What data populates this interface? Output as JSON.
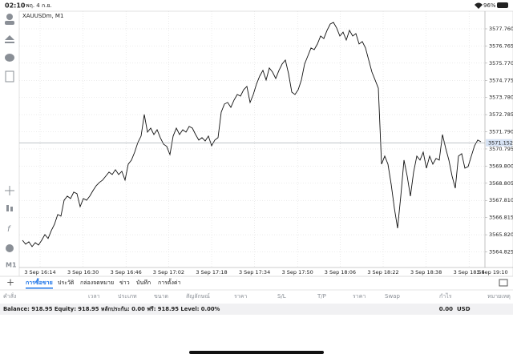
{
  "status_bar": {
    "time": "02:10",
    "date": "พฤ. 4 ก.ย.",
    "battery": "96%"
  },
  "chart_data": {
    "type": "line",
    "title": "XAUUSDm, M1",
    "color": "#111111",
    "grid": true,
    "values": [
      3565.5,
      3565.27,
      3565.41,
      3565.13,
      3565.36,
      3565.22,
      3565.5,
      3565.83,
      3565.6,
      3566.06,
      3566.43,
      3566.99,
      3566.9,
      3567.82,
      3568.06,
      3567.92,
      3568.29,
      3568.2,
      3567.45,
      3567.92,
      3567.82,
      3568.06,
      3568.38,
      3568.66,
      3568.85,
      3568.99,
      3569.22,
      3569.45,
      3569.31,
      3569.59,
      3569.31,
      3569.5,
      3568.99,
      3569.91,
      3570.15,
      3570.61,
      3571.17,
      3571.54,
      3572.79,
      3571.77,
      3572.0,
      3571.63,
      3571.91,
      3571.45,
      3571.07,
      3570.94,
      3570.47,
      3571.54,
      3572.0,
      3571.63,
      3571.91,
      3571.77,
      3572.1,
      3572.0,
      3571.63,
      3571.31,
      3571.45,
      3571.26,
      3571.54,
      3570.98,
      3571.31,
      3571.45,
      3572.93,
      3573.4,
      3573.49,
      3573.21,
      3573.63,
      3573.95,
      3573.86,
      3574.23,
      3574.42,
      3573.49,
      3573.95,
      3574.56,
      3575.02,
      3575.35,
      3574.79,
      3575.49,
      3575.25,
      3574.88,
      3575.35,
      3575.72,
      3575.95,
      3575.16,
      3574.09,
      3573.95,
      3574.23,
      3574.79,
      3575.72,
      3576.18,
      3576.65,
      3576.55,
      3576.88,
      3577.34,
      3577.2,
      3577.67,
      3578.04,
      3578.13,
      3577.81,
      3577.34,
      3577.57,
      3577.11,
      3577.67,
      3577.34,
      3577.48,
      3576.88,
      3577.02,
      3576.65,
      3575.95,
      3575.25,
      3574.79,
      3574.32,
      3569.91,
      3570.38,
      3569.91,
      3568.75,
      3567.36,
      3566.2,
      3568.06,
      3570.15,
      3569.22,
      3568.06,
      3569.45,
      3570.38,
      3570.15,
      3570.61,
      3569.68,
      3570.38,
      3569.91,
      3570.24,
      3570.15,
      3571.63,
      3570.84,
      3570.15,
      3569.22,
      3568.52,
      3570.38,
      3570.52,
      3569.68,
      3569.77,
      3570.38,
      3570.98,
      3571.31,
      3571.21
    ],
    "xlim": [
      0,
      144.25
    ],
    "xticks": [
      {
        "value": 5.5,
        "label": "3 Sep 16:14"
      },
      {
        "value": 18.9,
        "label": "3 Sep 16:30"
      },
      {
        "value": 32.3,
        "label": "3 Sep 16:46"
      },
      {
        "value": 45.6,
        "label": "3 Sep 17:02"
      },
      {
        "value": 59,
        "label": "3 Sep 17:18"
      },
      {
        "value": 72.4,
        "label": "3 Sep 17:34"
      },
      {
        "value": 85.8,
        "label": "3 Sep 17:50"
      },
      {
        "value": 99.1,
        "label": "3 Sep 18:06"
      },
      {
        "value": 112.5,
        "label": "3 Sep 18:22"
      },
      {
        "value": 125.9,
        "label": "3 Sep 18:38"
      },
      {
        "value": 139.3,
        "label": "3 Sep 18:54"
      },
      {
        "value": 146.5,
        "label": "3 Sep 19:10"
      }
    ],
    "ylim": [
      3563.92,
      3578.41
    ],
    "yticks": [
      {
        "value": 3577.76,
        "label": "3577.760"
      },
      {
        "value": 3576.765,
        "label": "3576.765"
      },
      {
        "value": 3575.77,
        "label": "3575.770"
      },
      {
        "value": 3574.775,
        "label": "3574.775"
      },
      {
        "value": 3573.78,
        "label": "3573.780"
      },
      {
        "value": 3572.785,
        "label": "3572.785"
      },
      {
        "value": 3571.79,
        "label": "3571.790"
      },
      {
        "value": 3570.795,
        "label": "3570.795"
      },
      {
        "value": 3569.8,
        "label": "3569.800"
      },
      {
        "value": 3568.805,
        "label": "3568.805"
      },
      {
        "value": 3567.81,
        "label": "3567.810"
      },
      {
        "value": 3566.815,
        "label": "3566.815"
      },
      {
        "value": 3565.82,
        "label": "3565.820"
      },
      {
        "value": 3564.825,
        "label": "3564.825"
      }
    ],
    "current_price": 3571.152,
    "timeframe": "M1"
  },
  "tabs": [
    "การซื้อขาย",
    "ประวัติ",
    "กล่องจดหมาย",
    "ข่าว",
    "บันทึก",
    "การตั้งค่า"
  ],
  "table_header": [
    "คำสั่ง",
    "เวลา",
    "ประเภท",
    "ขนาด",
    "สัญลักษณ์",
    "ราคา",
    "S/L",
    "T/P",
    "ราคา",
    "Swap",
    "กำไร",
    "หมายเหตุ"
  ],
  "balance_bar": {
    "summary": "Balance: 918.95 Equity: 918.95 หลักประกัน: 0.00 ฟรี: 918.95 Level: 0.00%",
    "profit": "0.00",
    "currency": "USD"
  }
}
